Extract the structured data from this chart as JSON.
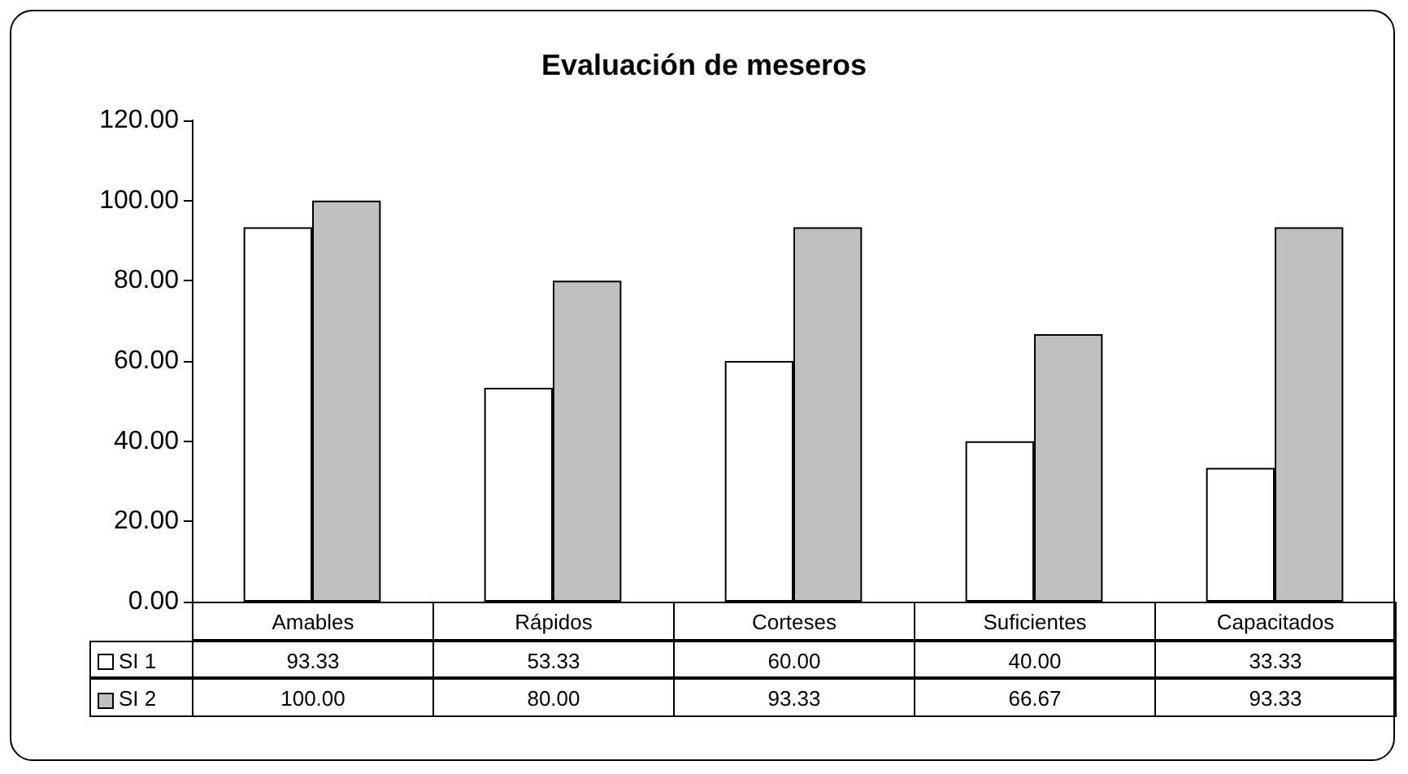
{
  "chart_data": {
    "type": "bar",
    "title": "Evaluación de meseros",
    "categories": [
      "Amables",
      "Rápidos",
      "Corteses",
      "Suficientes",
      "Capacitados"
    ],
    "series": [
      {
        "name": "SI 1",
        "color": "#ffffff",
        "values": [
          93.33,
          53.33,
          60.0,
          40.0,
          33.33
        ],
        "value_labels": [
          "93.33",
          "53.33",
          "60.00",
          "40.00",
          "33.33"
        ]
      },
      {
        "name": "SI 2",
        "color": "#c0c0c0",
        "values": [
          100.0,
          80.0,
          93.33,
          66.67,
          93.33
        ],
        "value_labels": [
          "100.00",
          "80.00",
          "93.33",
          "66.67",
          "93.33"
        ]
      }
    ],
    "ylim": [
      0,
      120
    ],
    "yticks": [
      {
        "value": 0,
        "label": "0.00"
      },
      {
        "value": 20,
        "label": "20.00"
      },
      {
        "value": 40,
        "label": "40.00"
      },
      {
        "value": 60,
        "label": "60.00"
      },
      {
        "value": 80,
        "label": "80.00"
      },
      {
        "value": 100,
        "label": "100.00"
      },
      {
        "value": 120,
        "label": "120.00"
      }
    ],
    "legend": "bottom",
    "grid": false
  }
}
